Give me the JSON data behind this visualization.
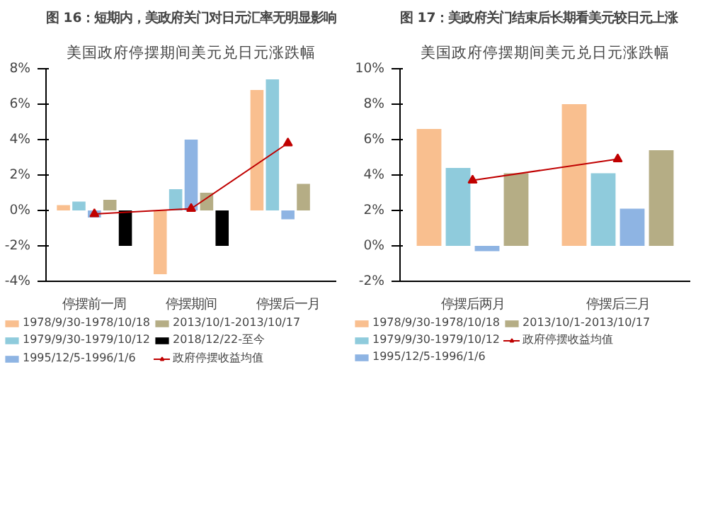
{
  "chart_data": [
    {
      "type": "bar",
      "title": "图 16：短期内，美政府关门对日元汇率无明显影响",
      "subtitle": "美国政府停摆期间美元兑日元涨跌幅",
      "categories": [
        "停摆前一周",
        "停摆期间",
        "停摆后一月"
      ],
      "ylim": [
        -4,
        8
      ],
      "yticks": [
        {
          "value": -4,
          "label": "-4%"
        },
        {
          "value": -2,
          "label": "-2%"
        },
        {
          "value": 0,
          "label": "0%"
        },
        {
          "value": 2,
          "label": "2%"
        },
        {
          "value": 4,
          "label": "4%"
        },
        {
          "value": 6,
          "label": "6%"
        },
        {
          "value": 8,
          "label": "8%"
        }
      ],
      "grid": false,
      "legend": "bottom",
      "series": [
        {
          "name": "1978/9/30-1978/10/18",
          "color": "#f9bf8f",
          "values": [
            0.3,
            -3.6,
            6.8
          ]
        },
        {
          "name": "1979/9/30-1979/10/12",
          "color": "#8fcbdc",
          "values": [
            0.5,
            1.2,
            7.4
          ]
        },
        {
          "name": "1995/12/5-1996/1/6",
          "color": "#8eb4e3",
          "values": [
            -0.4,
            4.0,
            -0.5
          ]
        },
        {
          "name": "2013/10/1-2013/10/17",
          "color": "#b5ad85",
          "values": [
            0.6,
            1.0,
            1.5
          ]
        },
        {
          "name": "2018/12/22-至今",
          "color": "#000000",
          "values": [
            -2.0,
            -2.0,
            null
          ]
        },
        {
          "name": "政府停摆收益均值",
          "color": "#c00000",
          "type": "line",
          "marker": "triangle",
          "values": [
            -0.2,
            0.1,
            3.8
          ]
        }
      ]
    },
    {
      "type": "bar",
      "title": "图 17：美政府关门结束后长期看美元较日元上涨",
      "subtitle": "美国政府停摆期间美元兑日元涨跌幅",
      "categories": [
        "停摆后两月",
        "停摆后三月"
      ],
      "ylim": [
        -2,
        10
      ],
      "yticks": [
        {
          "value": -2,
          "label": "-2%"
        },
        {
          "value": 0,
          "label": "0%"
        },
        {
          "value": 2,
          "label": "2%"
        },
        {
          "value": 4,
          "label": "4%"
        },
        {
          "value": 6,
          "label": "6%"
        },
        {
          "value": 8,
          "label": "8%"
        },
        {
          "value": 10,
          "label": "10%"
        }
      ],
      "grid": false,
      "legend": "bottom",
      "series": [
        {
          "name": "1978/9/30-1978/10/18",
          "color": "#f9bf8f",
          "values": [
            6.6,
            8.0
          ]
        },
        {
          "name": "1979/9/30-1979/10/12",
          "color": "#8fcbdc",
          "values": [
            4.4,
            4.1
          ]
        },
        {
          "name": "1995/12/5-1996/1/6",
          "color": "#8eb4e3",
          "values": [
            -0.3,
            2.1
          ]
        },
        {
          "name": "2013/10/1-2013/10/17",
          "color": "#b5ad85",
          "values": [
            4.1,
            5.4
          ]
        },
        {
          "name": "政府停摆收益均值",
          "color": "#c00000",
          "type": "line",
          "marker": "triangle",
          "values": [
            3.7,
            4.9
          ]
        }
      ]
    }
  ]
}
